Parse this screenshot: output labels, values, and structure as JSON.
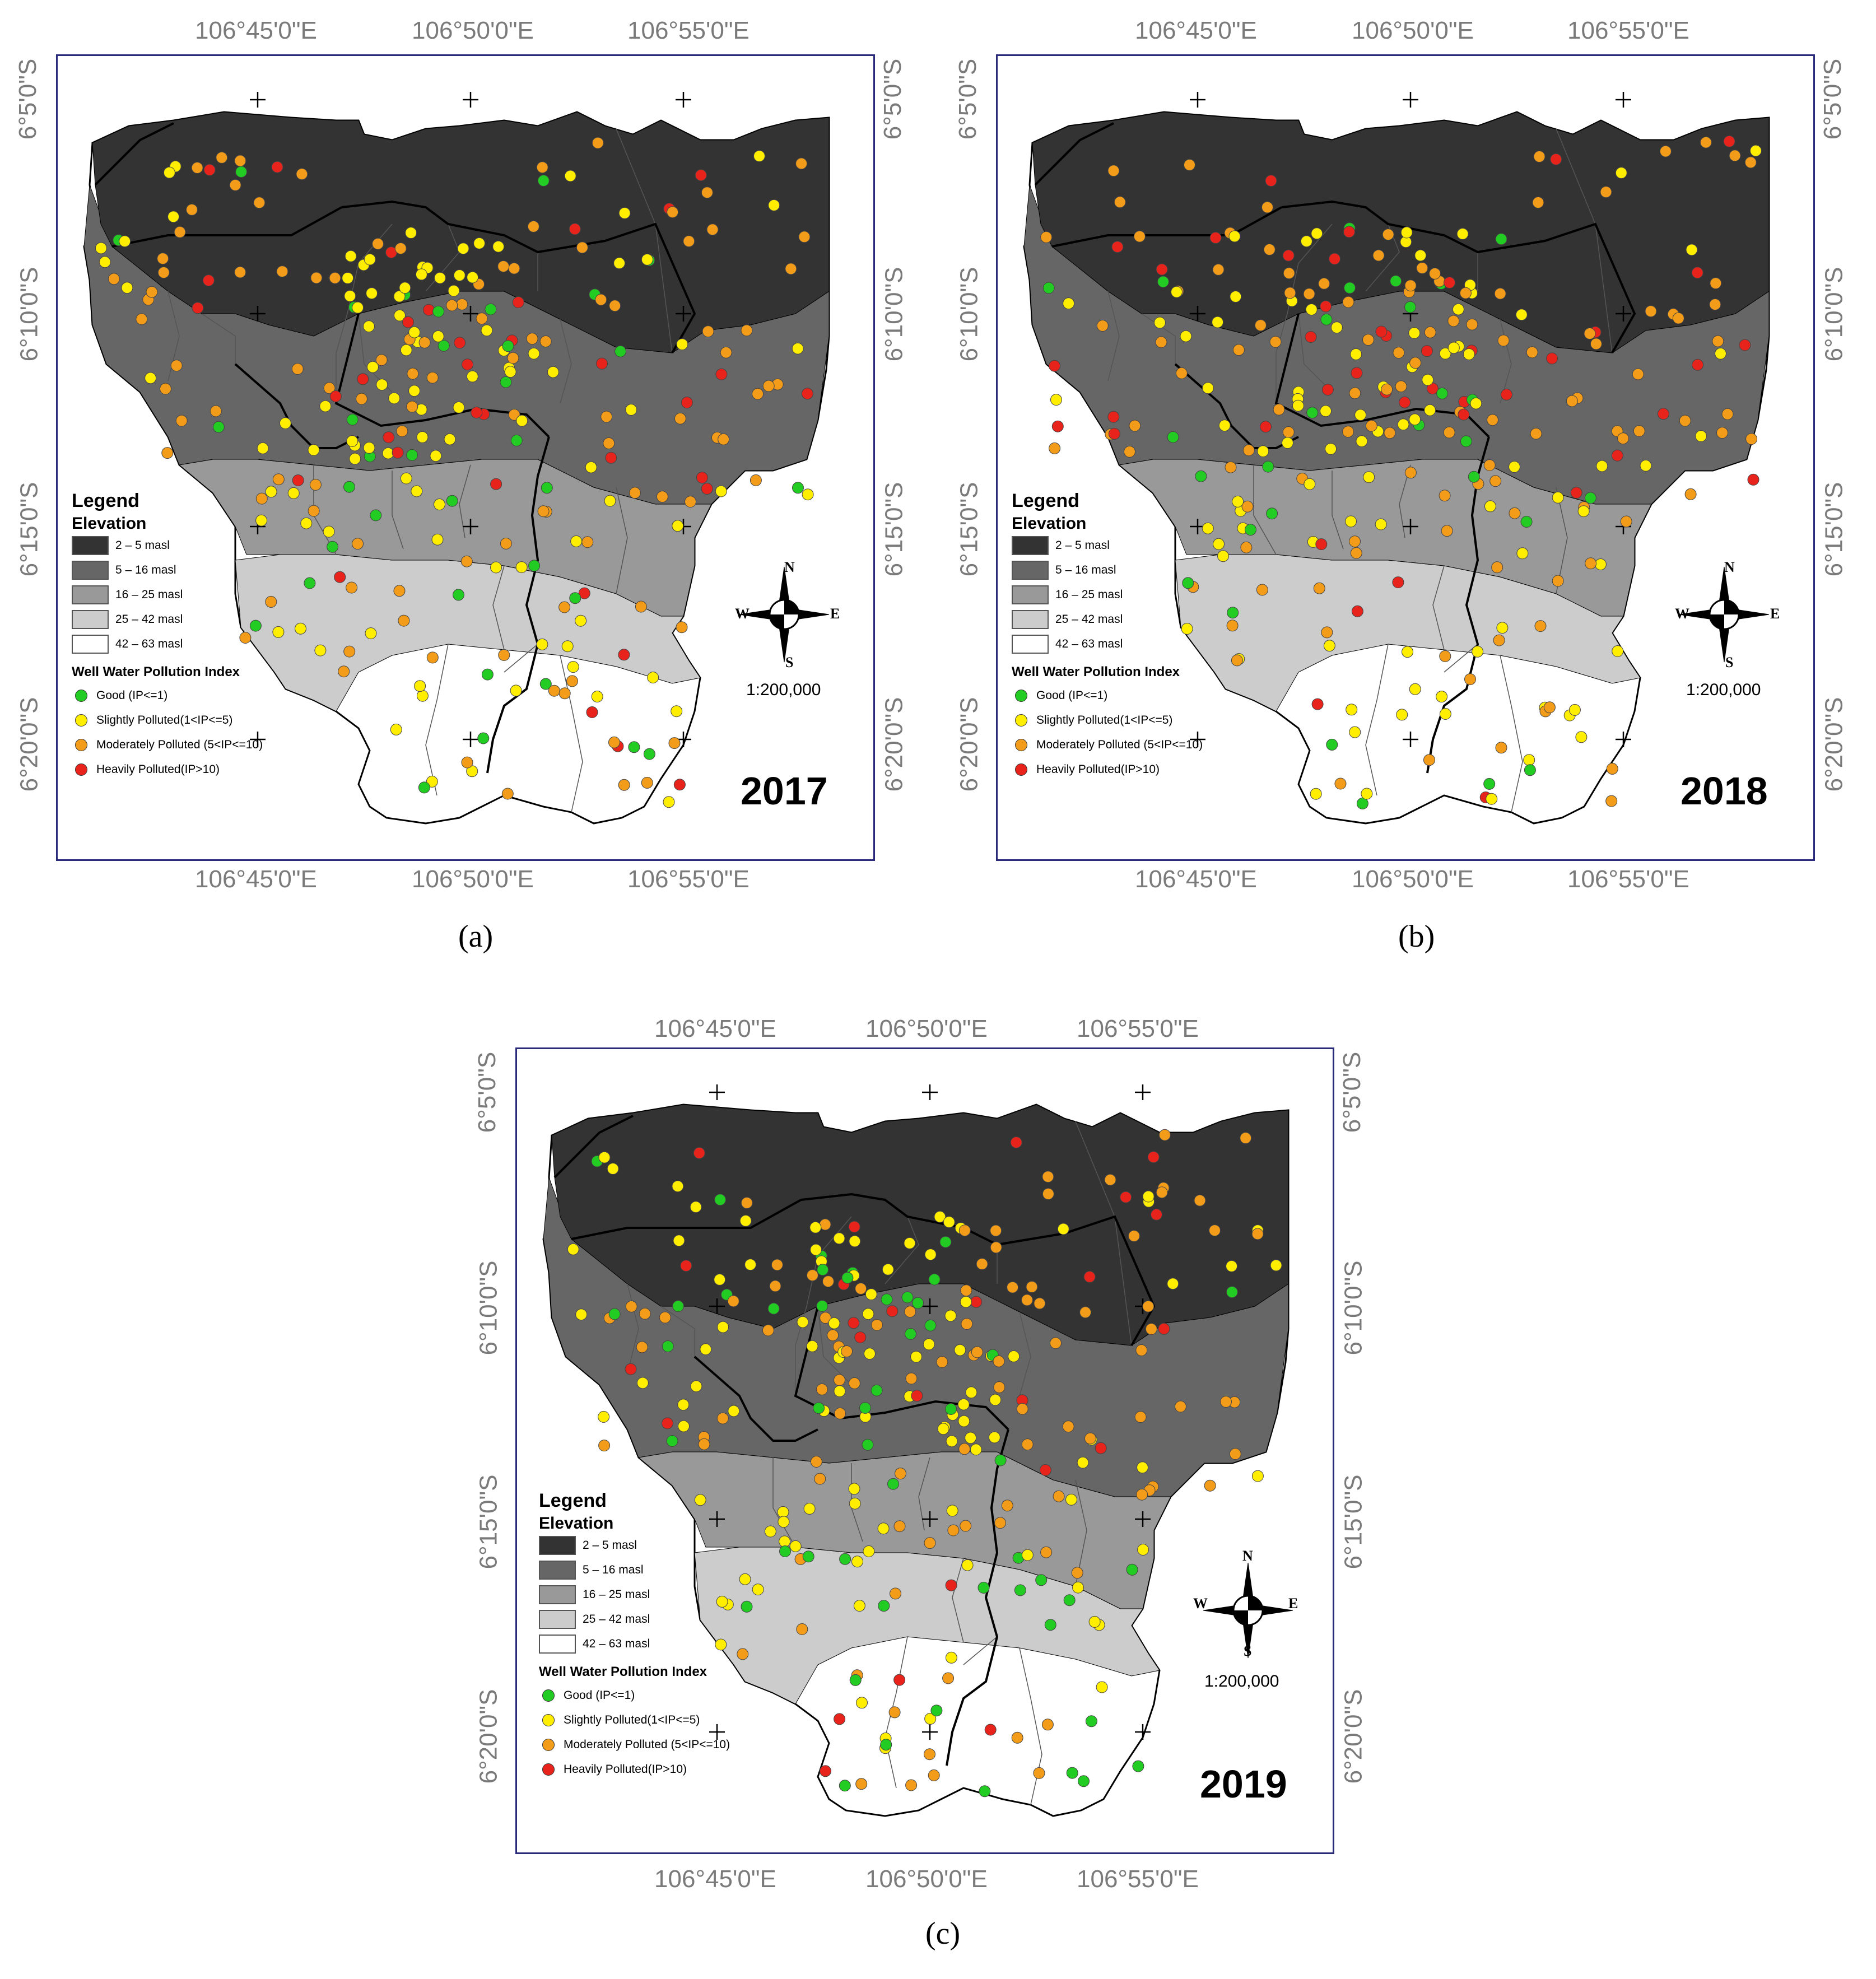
{
  "figure": {
    "panels": [
      {
        "id": "a",
        "caption": "(a)",
        "year": "2017",
        "scale": "1:200,000",
        "lon_labels": [
          "106°45'0\"E",
          "106°50'0\"E",
          "106°55'0\"E"
        ],
        "lat_labels": [
          "6°5'0\"S",
          "6°10'0\"S",
          "6°15'0\"S",
          "6°20'0\"S"
        ]
      },
      {
        "id": "b",
        "caption": "(b)",
        "year": "2018",
        "scale": "1:200,000",
        "lon_labels": [
          "106°45'0\"E",
          "106°50'0\"E",
          "106°55'0\"E"
        ],
        "lat_labels": [
          "6°5'0\"S",
          "6°10'0\"S",
          "6°15'0\"S",
          "6°20'0\"S"
        ]
      },
      {
        "id": "c",
        "caption": "(c)",
        "year": "2019",
        "scale": "1:200,000",
        "lon_labels": [
          "106°45'0\"E",
          "106°50'0\"E",
          "106°55'0\"E"
        ],
        "lat_labels": [
          "6°5'0\"S",
          "6°10'0\"S",
          "6°15'0\"S",
          "6°20'0\"S"
        ]
      }
    ],
    "compass": {
      "n": "N",
      "s": "S",
      "e": "E",
      "w": "W"
    },
    "legend": {
      "title": "Legend",
      "elevation_title": "Elevation",
      "elevation_classes": [
        {
          "label": "2 – 5 masl",
          "color": "#333333"
        },
        {
          "label": "5 – 16 masl",
          "color": "#666666"
        },
        {
          "label": "16 – 25 masl",
          "color": "#999999"
        },
        {
          "label": "25 – 42 masl",
          "color": "#cccccc"
        },
        {
          "label": "42 – 63 masl",
          "color": "#ffffff"
        }
      ],
      "index_title": "Well Water Pollution Index",
      "index_classes": [
        {
          "label": "Good (IP<=1)",
          "color": "#22cc22"
        },
        {
          "label": "Slightly Polluted(1<IP<=5)",
          "color": "#ffee00"
        },
        {
          "label": "Moderately Polluted (5<IP<=10)",
          "color": "#f39c1a"
        },
        {
          "label": "Heavily Polluted(IP>10)",
          "color": "#e8231c"
        }
      ]
    }
  }
}
